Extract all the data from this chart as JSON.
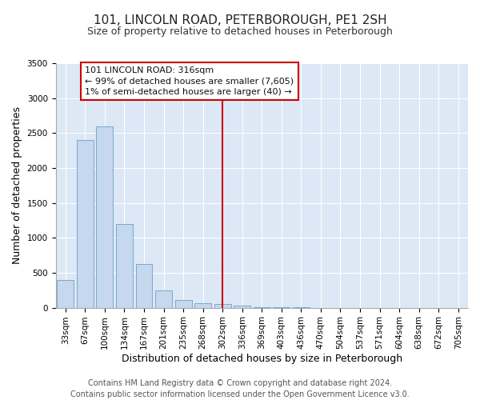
{
  "title": "101, LINCOLN ROAD, PETERBOROUGH, PE1 2SH",
  "subtitle": "Size of property relative to detached houses in Peterborough",
  "xlabel": "Distribution of detached houses by size in Peterborough",
  "ylabel": "Number of detached properties",
  "categories": [
    "33sqm",
    "67sqm",
    "100sqm",
    "134sqm",
    "167sqm",
    "201sqm",
    "235sqm",
    "268sqm",
    "302sqm",
    "336sqm",
    "369sqm",
    "403sqm",
    "436sqm",
    "470sqm",
    "504sqm",
    "537sqm",
    "571sqm",
    "604sqm",
    "638sqm",
    "672sqm",
    "705sqm"
  ],
  "values": [
    400,
    2400,
    2600,
    1200,
    630,
    250,
    110,
    60,
    50,
    30,
    5,
    3,
    2,
    1,
    0,
    0,
    0,
    0,
    0,
    0,
    0
  ],
  "bar_color": "#c5d8ed",
  "bar_edge_color": "#7aa8cc",
  "vline_index": 8,
  "vline_color": "#cc0000",
  "annotation_title": "101 LINCOLN ROAD: 316sqm",
  "annotation_line1": "← 99% of detached houses are smaller (7,605)",
  "annotation_line2": "1% of semi-detached houses are larger (40) →",
  "annotation_box_color": "#cc0000",
  "ylim": [
    0,
    3500
  ],
  "yticks": [
    0,
    500,
    1000,
    1500,
    2000,
    2500,
    3000,
    3500
  ],
  "background_color": "#dce8f5",
  "footer_line1": "Contains HM Land Registry data © Crown copyright and database right 2024.",
  "footer_line2": "Contains public sector information licensed under the Open Government Licence v3.0.",
  "title_fontsize": 11,
  "subtitle_fontsize": 9,
  "xlabel_fontsize": 9,
  "ylabel_fontsize": 9,
  "tick_fontsize": 7.5,
  "footer_fontsize": 7,
  "ann_fontsize": 8
}
